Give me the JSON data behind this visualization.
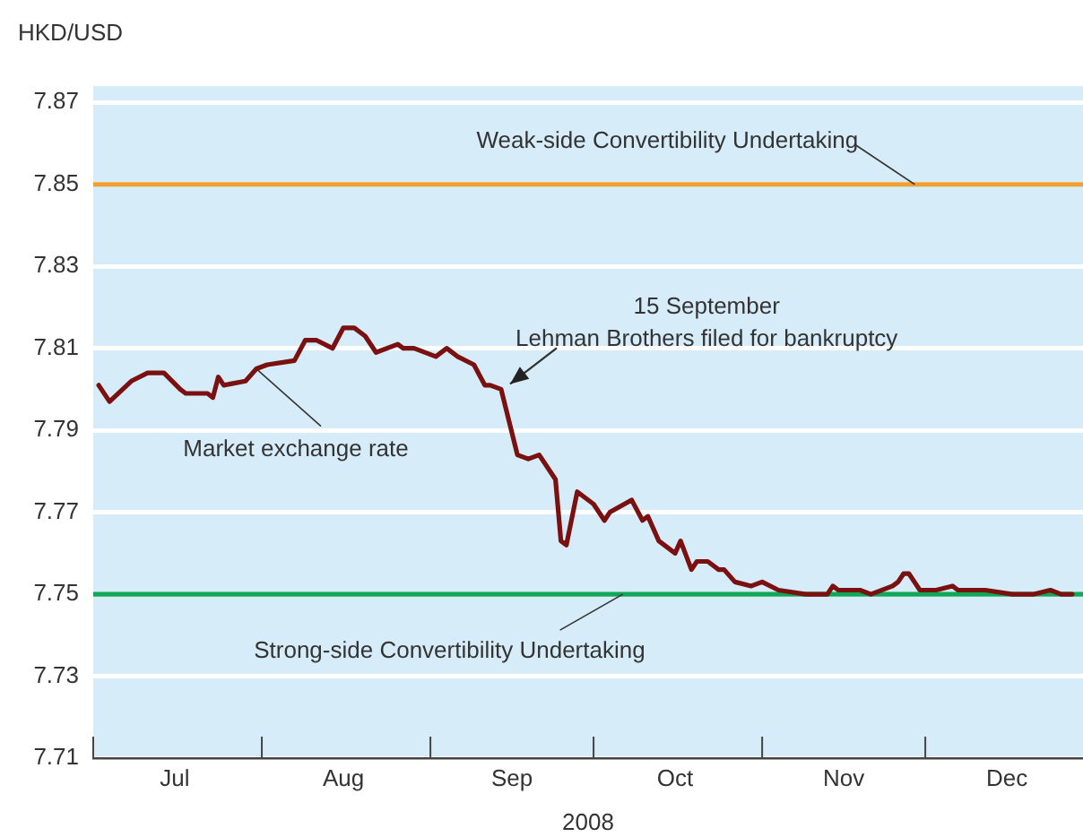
{
  "chart_data": {
    "type": "line",
    "ylabel": "HKD/USD",
    "xlabel": "2008",
    "xlim": [
      "2008-07-01",
      "2008-12-30"
    ],
    "xticks": [
      {
        "value": "2008-07-01",
        "label": null
      },
      {
        "value": "2008-07-16",
        "label": "Jul"
      },
      {
        "value": "2008-08-01",
        "label": null
      },
      {
        "value": "2008-08-16",
        "label": "Aug"
      },
      {
        "value": "2008-09-01",
        "label": null
      },
      {
        "value": "2008-09-16",
        "label": "Sep"
      },
      {
        "value": "2008-10-01",
        "label": null
      },
      {
        "value": "2008-10-16",
        "label": "Oct"
      },
      {
        "value": "2008-11-01",
        "label": null
      },
      {
        "value": "2008-11-16",
        "label": "Nov"
      },
      {
        "value": "2008-12-01",
        "label": null
      },
      {
        "value": "2008-12-16",
        "label": "Dec"
      }
    ],
    "ylim": [
      7.71,
      7.874
    ],
    "yticks": [
      7.71,
      7.73,
      7.75,
      7.77,
      7.79,
      7.81,
      7.83,
      7.85,
      7.87
    ],
    "grid": "y",
    "legend": false,
    "marker": "none",
    "line_style": "solid",
    "series": [
      {
        "color": "#7a1010",
        "x": [
          "2008-07-02",
          "2008-07-04",
          "2008-07-08",
          "2008-07-11",
          "2008-07-14",
          "2008-07-17",
          "2008-07-18",
          "2008-07-22",
          "2008-07-23",
          "2008-07-24",
          "2008-07-25",
          "2008-07-29",
          "2008-07-31",
          "2008-08-02",
          "2008-08-07",
          "2008-08-09",
          "2008-08-11",
          "2008-08-14",
          "2008-08-16",
          "2008-08-18",
          "2008-08-20",
          "2008-08-22",
          "2008-08-26",
          "2008-08-27",
          "2008-08-29",
          "2008-09-02",
          "2008-09-04",
          "2008-09-06",
          "2008-09-09",
          "2008-09-11",
          "2008-09-12",
          "2008-09-14",
          "2008-09-17",
          "2008-09-19",
          "2008-09-21",
          "2008-09-24",
          "2008-09-25",
          "2008-09-26",
          "2008-09-28",
          "2008-10-01",
          "2008-10-03",
          "2008-10-04",
          "2008-10-08",
          "2008-10-10",
          "2008-10-11",
          "2008-10-13",
          "2008-10-16",
          "2008-10-17",
          "2008-10-19",
          "2008-10-20",
          "2008-10-22",
          "2008-10-24",
          "2008-10-25",
          "2008-10-27",
          "2008-10-30",
          "2008-11-01",
          "2008-11-04",
          "2008-11-09",
          "2008-11-13",
          "2008-11-14",
          "2008-11-15",
          "2008-11-19",
          "2008-11-21",
          "2008-11-25",
          "2008-11-26",
          "2008-11-27",
          "2008-11-28",
          "2008-11-30",
          "2008-12-03",
          "2008-12-06",
          "2008-12-07",
          "2008-12-10",
          "2008-12-12",
          "2008-12-17",
          "2008-12-21",
          "2008-12-24",
          "2008-12-26",
          "2008-12-28"
        ],
        "values": [
          7.801,
          7.797,
          7.802,
          7.804,
          7.804,
          7.8,
          7.799,
          7.799,
          7.798,
          7.803,
          7.801,
          7.802,
          7.805,
          7.806,
          7.807,
          7.812,
          7.812,
          7.81,
          7.815,
          7.815,
          7.813,
          7.809,
          7.811,
          7.81,
          7.81,
          7.808,
          7.81,
          7.808,
          7.806,
          7.801,
          7.801,
          7.8,
          7.784,
          7.783,
          7.784,
          7.778,
          7.763,
          7.762,
          7.775,
          7.772,
          7.768,
          7.77,
          7.773,
          7.768,
          7.769,
          7.763,
          7.76,
          7.763,
          7.756,
          7.758,
          7.758,
          7.756,
          7.756,
          7.753,
          7.752,
          7.753,
          7.751,
          7.75,
          7.75,
          7.752,
          7.751,
          7.751,
          7.75,
          7.752,
          7.753,
          7.755,
          7.755,
          7.751,
          7.751,
          7.752,
          7.751,
          7.751,
          7.751,
          7.75,
          7.75,
          7.751,
          7.75,
          7.75
        ]
      }
    ],
    "ref_lines": [
      {
        "axis": "y",
        "value": 7.85,
        "label": "Weak-side Convertibility Undertaking",
        "color": "#f0a030"
      },
      {
        "axis": "y",
        "value": 7.75,
        "label": "Strong-side Convertibility Undertaking",
        "color": "#10a858"
      }
    ],
    "annotations": [
      {
        "text": "Market exchange rate",
        "x": "2008-07-31",
        "y": 7.805
      },
      {
        "text": "15 September\nLehman Brothers filed for bankruptcy",
        "x": "2008-09-15",
        "y": 7.8
      }
    ]
  }
}
